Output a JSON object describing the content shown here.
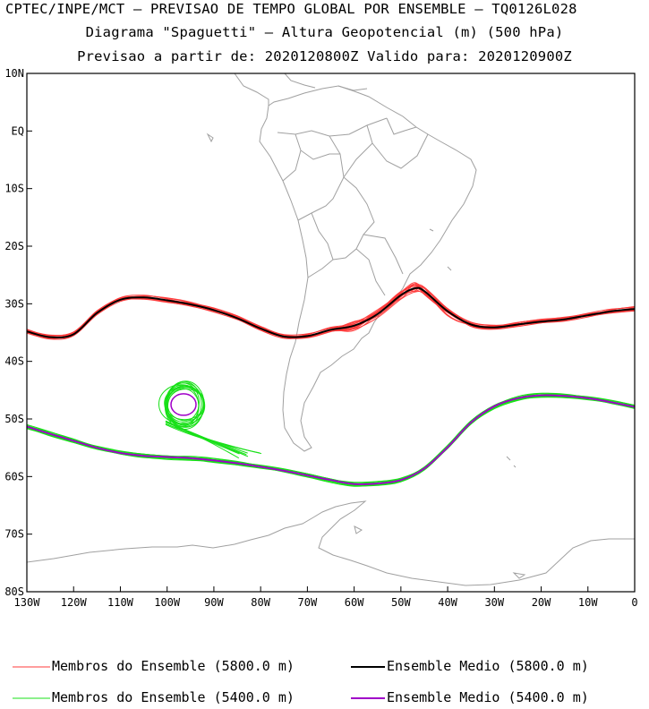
{
  "titles": {
    "line1": "CPTEC/INPE/MCT – PREVISAO DE TEMPO GLOBAL POR ENSEMBLE – TQ0126L028",
    "line2": "Diagrama \"Spaguetti\" – Altura Geopotencial (m) (500 hPa)",
    "line3": "Previsao a partir de: 2020120800Z  Valido para: 2020120900Z"
  },
  "colors": {
    "member_5800": "#ff3b3b",
    "mean_5800": "#000000",
    "member_5400": "#18e018",
    "mean_5400": "#a000c8",
    "coast": "#a0a0a0"
  },
  "chart_data": {
    "type": "line",
    "title": "Diagrama \"Spaguetti\" – Altura Geopotencial (m) (500 hPa)",
    "xlim": [
      -130,
      0
    ],
    "ylim": [
      -80,
      10
    ],
    "x_ticks": [
      {
        "value": -130,
        "label": "130W"
      },
      {
        "value": -120,
        "label": "120W"
      },
      {
        "value": -110,
        "label": "110W"
      },
      {
        "value": -100,
        "label": "100W"
      },
      {
        "value": -90,
        "label": "90W"
      },
      {
        "value": -80,
        "label": "80W"
      },
      {
        "value": -70,
        "label": "70W"
      },
      {
        "value": -60,
        "label": "60W"
      },
      {
        "value": -50,
        "label": "50W"
      },
      {
        "value": -40,
        "label": "40W"
      },
      {
        "value": -30,
        "label": "30W"
      },
      {
        "value": -20,
        "label": "20W"
      },
      {
        "value": -10,
        "label": "10W"
      },
      {
        "value": 0,
        "label": "0"
      }
    ],
    "y_ticks": [
      {
        "value": 10,
        "label": "10N"
      },
      {
        "value": 0,
        "label": "EQ"
      },
      {
        "value": -10,
        "label": "10S"
      },
      {
        "value": -20,
        "label": "20S"
      },
      {
        "value": -30,
        "label": "30S"
      },
      {
        "value": -40,
        "label": "40S"
      },
      {
        "value": -50,
        "label": "50S"
      },
      {
        "value": -60,
        "label": "60S"
      },
      {
        "value": -70,
        "label": "70S"
      },
      {
        "value": -80,
        "label": "80S"
      }
    ],
    "series": [
      {
        "name": "Ensemble Medio (5800.0 m)",
        "role": "mean",
        "color": "#000000",
        "members_name": "Membros do Ensemble (5800.0 m)",
        "members_color": "#ff3b3b",
        "member_count": 14,
        "lon": [
          -130,
          -125,
          -120,
          -115,
          -110,
          -105,
          -100,
          -95,
          -90,
          -85,
          -80,
          -75,
          -70,
          -65,
          -60,
          -55,
          -50,
          -47,
          -45,
          -40,
          -35,
          -30,
          -25,
          -20,
          -15,
          -10,
          -5,
          0
        ],
        "lat": [
          -34.8,
          -35.8,
          -35.3,
          -31.6,
          -29.3,
          -28.9,
          -29.4,
          -30.1,
          -31.1,
          -32.5,
          -34.3,
          -35.7,
          -35.6,
          -34.5,
          -33.8,
          -31.8,
          -28.5,
          -27.3,
          -27.8,
          -31.3,
          -33.6,
          -34.1,
          -33.6,
          -33.1,
          -32.7,
          -32.0,
          -31.3,
          -30.9
        ]
      },
      {
        "name": "Ensemble Medio (5400.0 m)",
        "role": "mean",
        "color": "#a000c8",
        "members_name": "Membros do Ensemble (5400.0 m)",
        "members_color": "#18e018",
        "member_count": 14,
        "lon": [
          -130,
          -125,
          -120,
          -115,
          -110,
          -105,
          -100,
          -95,
          -90,
          -85,
          -80,
          -75,
          -70,
          -65,
          -60,
          -55,
          -50,
          -45,
          -40,
          -35,
          -30,
          -25,
          -20,
          -15,
          -10,
          -5,
          0
        ],
        "lat": [
          -51.3,
          -52.6,
          -53.8,
          -55.0,
          -55.9,
          -56.4,
          -56.6,
          -56.8,
          -57.2,
          -57.7,
          -58.3,
          -59.0,
          -59.8,
          -60.6,
          -61.3,
          -61.2,
          -60.6,
          -58.6,
          -54.9,
          -50.6,
          -47.8,
          -46.4,
          -45.9,
          -46.0,
          -46.4,
          -47.1,
          -47.9
        ]
      }
    ],
    "cutoff_low": {
      "center_lon": -96.5,
      "center_lat": -47.5,
      "color": "#18e018"
    }
  },
  "legend": {
    "item1": "Membros do Ensemble (5800.0 m)",
    "item2": "Ensemble Medio (5800.0 m)",
    "item3": "Membros do Ensemble (5400.0 m)",
    "item4": "Ensemble Medio (5400.0 m)"
  }
}
